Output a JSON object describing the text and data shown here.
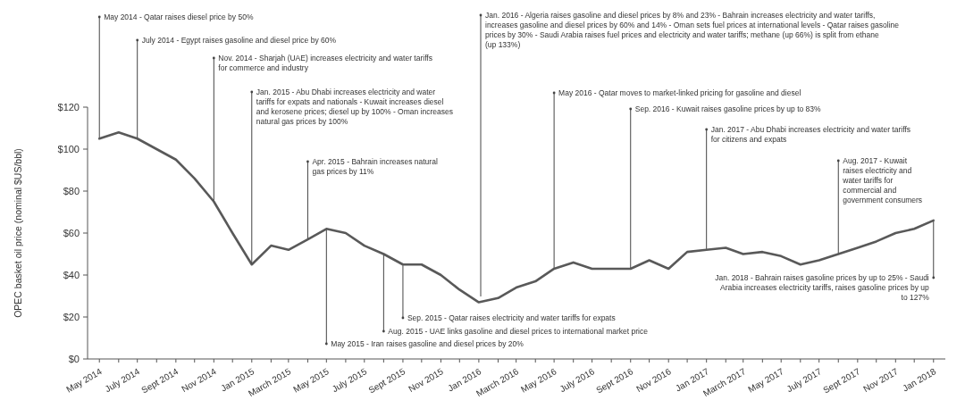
{
  "chart_data": {
    "type": "line",
    "ylabel": "OPEC basket oil price (nominal $US/bbl)",
    "x": [
      "2014-05",
      "2014-06",
      "2014-07",
      "2014-08",
      "2014-09",
      "2014-10",
      "2014-11",
      "2014-12",
      "2015-01",
      "2015-02",
      "2015-03",
      "2015-04",
      "2015-05",
      "2015-06",
      "2015-07",
      "2015-08",
      "2015-09",
      "2015-10",
      "2015-11",
      "2015-12",
      "2016-01",
      "2016-02",
      "2016-03",
      "2016-04",
      "2016-05",
      "2016-06",
      "2016-07",
      "2016-08",
      "2016-09",
      "2016-10",
      "2016-11",
      "2016-12",
      "2017-01",
      "2017-02",
      "2017-03",
      "2017-04",
      "2017-05",
      "2017-06",
      "2017-07",
      "2017-08",
      "2017-09",
      "2017-10",
      "2017-11",
      "2017-12",
      "2018-01"
    ],
    "series": [
      {
        "color": "#595959",
        "values": [
          105,
          108,
          105,
          100,
          95,
          86,
          75,
          60,
          45,
          54,
          52,
          57,
          62,
          60,
          54,
          50,
          45,
          45,
          40,
          33,
          27,
          29,
          34,
          37,
          43,
          46,
          43,
          43,
          43,
          47,
          43,
          51,
          52,
          53,
          50,
          51,
          49,
          45,
          47,
          50,
          53,
          56,
          60,
          62,
          66
        ]
      }
    ],
    "xlim": [
      "2014-04-12",
      "2018-01-20"
    ],
    "xticks": [
      {
        "value": "2014-05",
        "label": "May 2014"
      },
      {
        "value": "2014-06",
        "label": null
      },
      {
        "value": "2014-07",
        "label": "July 2014"
      },
      {
        "value": "2014-08",
        "label": null
      },
      {
        "value": "2014-09",
        "label": "Sept 2014"
      },
      {
        "value": "2014-10",
        "label": null
      },
      {
        "value": "2014-11",
        "label": "Nov 2014"
      },
      {
        "value": "2014-12",
        "label": null
      },
      {
        "value": "2015-01",
        "label": "Jan 2015"
      },
      {
        "value": "2015-02",
        "label": null
      },
      {
        "value": "2015-03",
        "label": "March 2015"
      },
      {
        "value": "2015-04",
        "label": null
      },
      {
        "value": "2015-05",
        "label": "May 2015"
      },
      {
        "value": "2015-06",
        "label": null
      },
      {
        "value": "2015-07",
        "label": "July 2015"
      },
      {
        "value": "2015-08",
        "label": null
      },
      {
        "value": "2015-09",
        "label": "Sept 2015"
      },
      {
        "value": "2015-10",
        "label": null
      },
      {
        "value": "2015-11",
        "label": "Nov 2015"
      },
      {
        "value": "2015-12",
        "label": null
      },
      {
        "value": "2016-01",
        "label": "Jan 2016"
      },
      {
        "value": "2016-02",
        "label": null
      },
      {
        "value": "2016-03",
        "label": "March 2016"
      },
      {
        "value": "2016-04",
        "label": null
      },
      {
        "value": "2016-05",
        "label": "May 2016"
      },
      {
        "value": "2016-06",
        "label": null
      },
      {
        "value": "2016-07",
        "label": "July 2016"
      },
      {
        "value": "2016-08",
        "label": null
      },
      {
        "value": "2016-09",
        "label": "Sept 2016"
      },
      {
        "value": "2016-10",
        "label": null
      },
      {
        "value": "2016-11",
        "label": "Nov 2016"
      },
      {
        "value": "2016-12",
        "label": null
      },
      {
        "value": "2017-01",
        "label": "Jan 2017"
      },
      {
        "value": "2017-02",
        "label": null
      },
      {
        "value": "2017-03",
        "label": "March 2017"
      },
      {
        "value": "2017-04",
        "label": null
      },
      {
        "value": "2017-05",
        "label": "May 2017"
      },
      {
        "value": "2017-06",
        "label": null
      },
      {
        "value": "2017-07",
        "label": "July 2017"
      },
      {
        "value": "2017-08",
        "label": null
      },
      {
        "value": "2017-09",
        "label": "Sept 2017"
      },
      {
        "value": "2017-10",
        "label": null
      },
      {
        "value": "2017-11",
        "label": "Nov 2017"
      },
      {
        "value": "2017-12",
        "label": null
      },
      {
        "value": "2018-01",
        "label": "Jan 2018"
      }
    ],
    "ylim": [
      0,
      120
    ],
    "yticks": [
      {
        "value": 0,
        "label": "$0"
      },
      {
        "value": 20,
        "label": "$20"
      },
      {
        "value": 40,
        "label": "$40"
      },
      {
        "value": 60,
        "label": "$60"
      },
      {
        "value": 80,
        "label": "$80"
      },
      {
        "value": 100,
        "label": "$100"
      },
      {
        "value": 120,
        "label": "$120"
      }
    ],
    "annotations": [
      {
        "text": "May 2014 - Qatar raises diesel price by 50%",
        "x": "2014-05",
        "y": 105
      },
      {
        "text": "July 2014 - Egypt raises gasoline and diesel price by 60%",
        "x": "2014-07",
        "y": 105
      },
      {
        "text": "Nov. 2014 - Sharjah (UAE) increases electricity and water tariffs for commerce and industry",
        "x": "2014-11",
        "y": 75
      },
      {
        "text": "Jan. 2015 - Abu Dhabi increases electricity and water tariffs for expats and nationals - Kuwait increases diesel and kerosene prices; diesel up by 100% - Oman increases natural gas prices by 100%",
        "x": "2015-01",
        "y": 45
      },
      {
        "text": "Apr. 2015 - Bahrain increases natural gas prices by 11%",
        "x": "2015-04",
        "y": 57
      },
      {
        "text": "May 2015 - Iran raises gasoline and diesel prices by 20%",
        "x": "2015-05",
        "y": 62
      },
      {
        "text": "Aug. 2015 - UAE links gasoline and diesel prices to international market price",
        "x": "2015-08",
        "y": 50
      },
      {
        "text": "Sep. 2015 - Qatar raises electricity and water tariffs for expats",
        "x": "2015-09",
        "y": 45
      },
      "Jan. 2016 - Algeria raises gasoline and diesel prices by 8% and 23% - Bahrain increases electricity and water tariffs, increases gasoline and diesel prices by 60% and 14% - Oman sets fuel prices at international levels - Qatar raises gasoline prices by 30% - Saudi Arabia raises fuel prices and electricity and water tariffs; methane (up 66%) is split from ethane (up 133%)",
      {
        "text": "May 2016 - Qatar moves to market-linked pricing for gasoline and diesel",
        "x": "2016-05",
        "y": 43
      },
      {
        "text": "Sep. 2016 - Kuwait raises gasoline prices by up to 83%",
        "x": "2016-09",
        "y": 43
      },
      {
        "text": "Jan. 2017 - Abu Dhabi increases electricity and water tariffs for citizens and expats",
        "x": "2017-01",
        "y": 52
      },
      {
        "text": "Aug. 2017 - Kuwait raises electricity and water tariffs for commercial and government consumers",
        "x": "2017-08",
        "y": 50
      },
      {
        "text": "Jan. 2018 - Bahrain raises gasoline prices by up to 25% - Saudi Arabia increases electricity tariffs, raises gasoline prices by up to 127%",
        "x": "2018-01",
        "y": 66
      }
    ]
  }
}
